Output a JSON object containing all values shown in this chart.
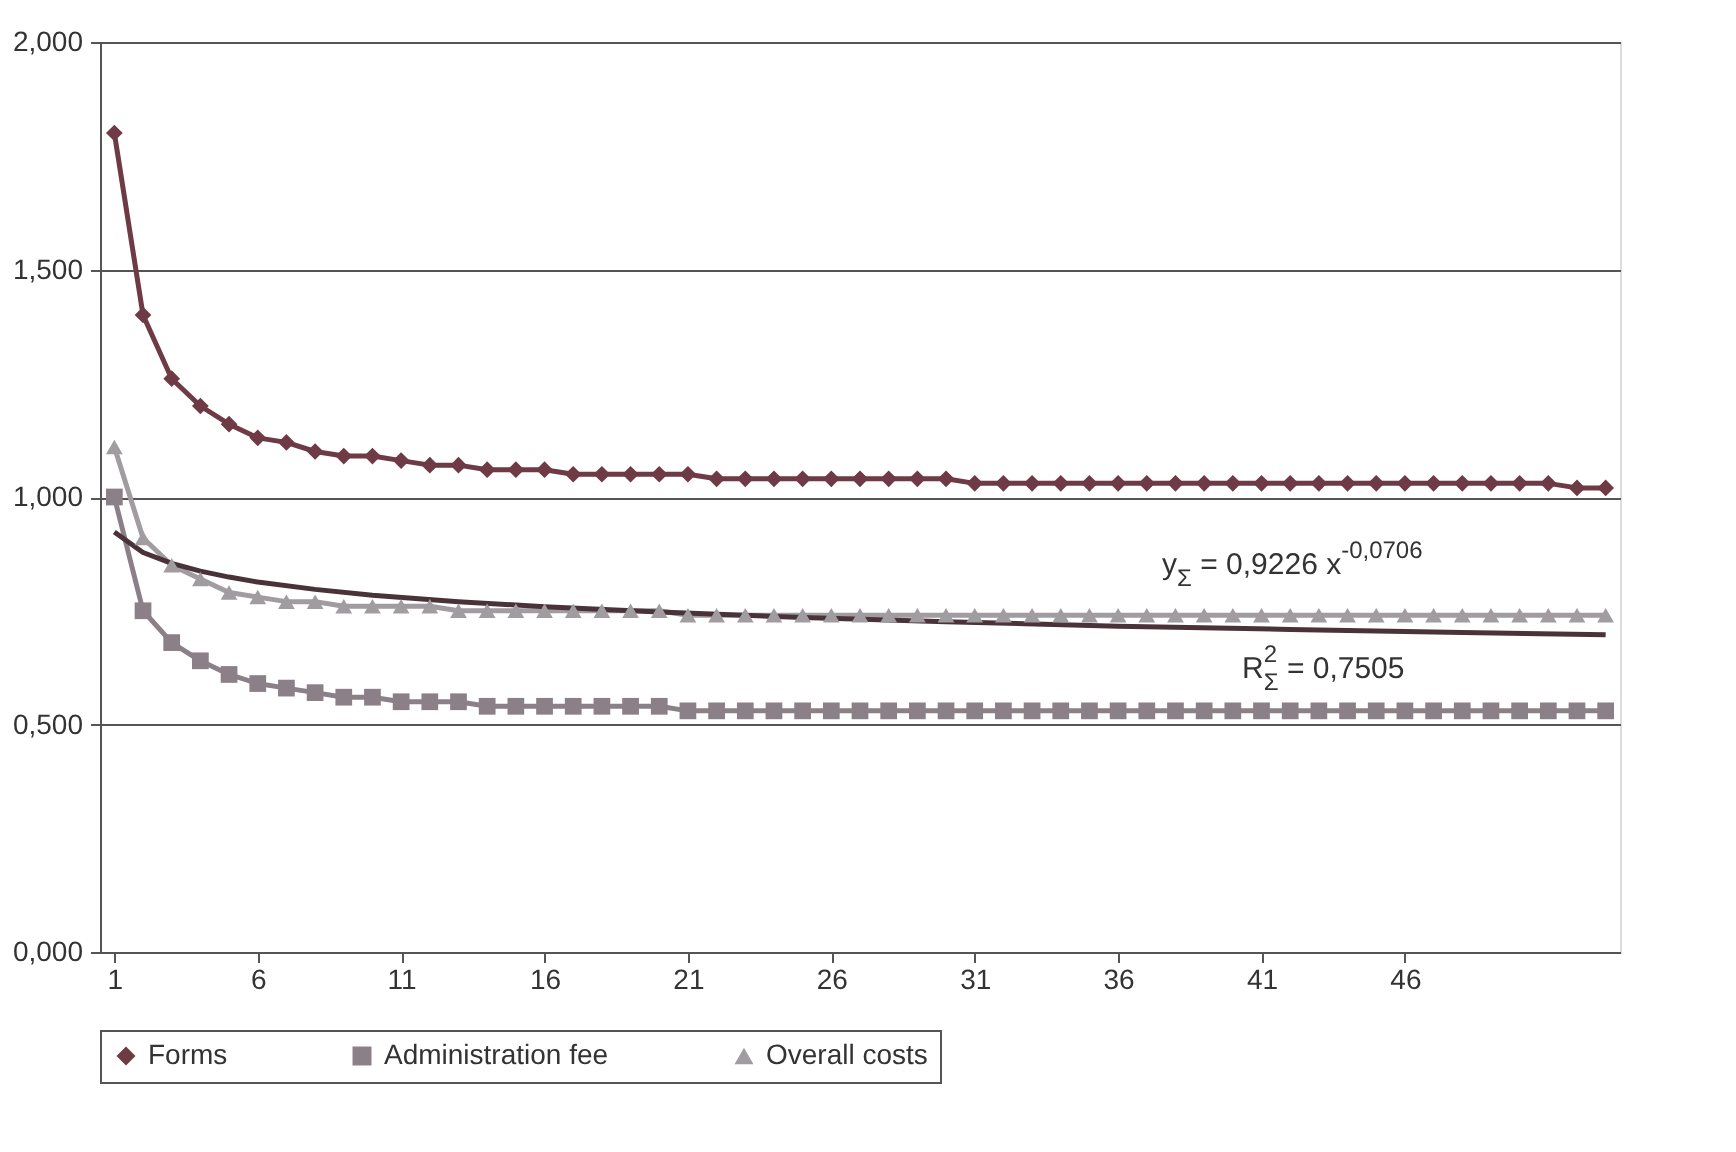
{
  "chart_data": {
    "type": "line",
    "x": [
      1,
      2,
      3,
      4,
      5,
      6,
      7,
      8,
      9,
      10,
      11,
      12,
      13,
      14,
      15,
      16,
      17,
      18,
      19,
      20,
      21,
      22,
      23,
      24,
      25,
      26,
      27,
      28,
      29,
      30,
      31,
      32,
      33,
      34,
      35,
      36,
      37,
      38,
      39,
      40,
      41,
      42,
      43,
      44,
      45,
      46,
      47,
      48,
      49,
      50,
      51,
      52,
      53
    ],
    "series": [
      {
        "name": "Forms",
        "color": "#6e3a45",
        "marker": "diamond",
        "values": [
          1.8,
          1.4,
          1.26,
          1.2,
          1.16,
          1.13,
          1.12,
          1.1,
          1.09,
          1.09,
          1.08,
          1.07,
          1.07,
          1.06,
          1.06,
          1.06,
          1.05,
          1.05,
          1.05,
          1.05,
          1.05,
          1.04,
          1.04,
          1.04,
          1.04,
          1.04,
          1.04,
          1.04,
          1.04,
          1.04,
          1.03,
          1.03,
          1.03,
          1.03,
          1.03,
          1.03,
          1.03,
          1.03,
          1.03,
          1.03,
          1.03,
          1.03,
          1.03,
          1.03,
          1.03,
          1.03,
          1.03,
          1.03,
          1.03,
          1.03,
          1.03,
          1.02,
          1.02
        ]
      },
      {
        "name": "Administration fee",
        "color": "#8c8088",
        "marker": "square",
        "values": [
          1.0,
          0.75,
          0.68,
          0.64,
          0.61,
          0.59,
          0.58,
          0.57,
          0.56,
          0.56,
          0.55,
          0.55,
          0.55,
          0.54,
          0.54,
          0.54,
          0.54,
          0.54,
          0.54,
          0.54,
          0.53,
          0.53,
          0.53,
          0.53,
          0.53,
          0.53,
          0.53,
          0.53,
          0.53,
          0.53,
          0.53,
          0.53,
          0.53,
          0.53,
          0.53,
          0.53,
          0.53,
          0.53,
          0.53,
          0.53,
          0.53,
          0.53,
          0.53,
          0.53,
          0.53,
          0.53,
          0.53,
          0.53,
          0.53,
          0.53,
          0.53,
          0.53,
          0.53
        ]
      },
      {
        "name": "Overall costs",
        "color": "#a09ca0",
        "marker": "triangle",
        "values": [
          1.11,
          0.91,
          0.85,
          0.82,
          0.79,
          0.78,
          0.77,
          0.77,
          0.76,
          0.76,
          0.76,
          0.76,
          0.75,
          0.75,
          0.75,
          0.75,
          0.75,
          0.75,
          0.75,
          0.75,
          0.74,
          0.74,
          0.74,
          0.74,
          0.74,
          0.74,
          0.74,
          0.74,
          0.74,
          0.74,
          0.74,
          0.74,
          0.74,
          0.74,
          0.74,
          0.74,
          0.74,
          0.74,
          0.74,
          0.74,
          0.74,
          0.74,
          0.74,
          0.74,
          0.74,
          0.74,
          0.74,
          0.74,
          0.74,
          0.74,
          0.74,
          0.74,
          0.74
        ]
      },
      {
        "type": "line",
        "color": "#4a3338",
        "marker": "none",
        "x": [
          1,
          2,
          3,
          4,
          5,
          6,
          8,
          10,
          13,
          16,
          20,
          25,
          30,
          36,
          42,
          48,
          53
        ],
        "values": [
          0.923,
          0.878,
          0.854,
          0.837,
          0.824,
          0.813,
          0.797,
          0.784,
          0.77,
          0.759,
          0.747,
          0.735,
          0.726,
          0.716,
          0.709,
          0.702,
          0.697
        ]
      }
    ],
    "xlim": [
      0.5,
      53.5
    ],
    "xticks": [
      1,
      6,
      11,
      16,
      21,
      26,
      31,
      36,
      41,
      46
    ],
    "ylim": [
      0,
      2
    ],
    "yticks": [
      {
        "value": 0,
        "label": "0,000"
      },
      {
        "value": 0.5,
        "label": "0,500"
      },
      {
        "value": 1,
        "label": "1,000"
      },
      {
        "value": 1.5,
        "label": "1,500"
      },
      {
        "value": 2,
        "label": "2,000"
      }
    ],
    "grid": "y",
    "legend": "bottom",
    "line_style": "solid",
    "annotations": [
      "y$_{Σ}$ = 0,9226 x$^{-0,0706}$",
      "R$^{2}$$_{Σ}$ = 0,7505"
    ]
  }
}
